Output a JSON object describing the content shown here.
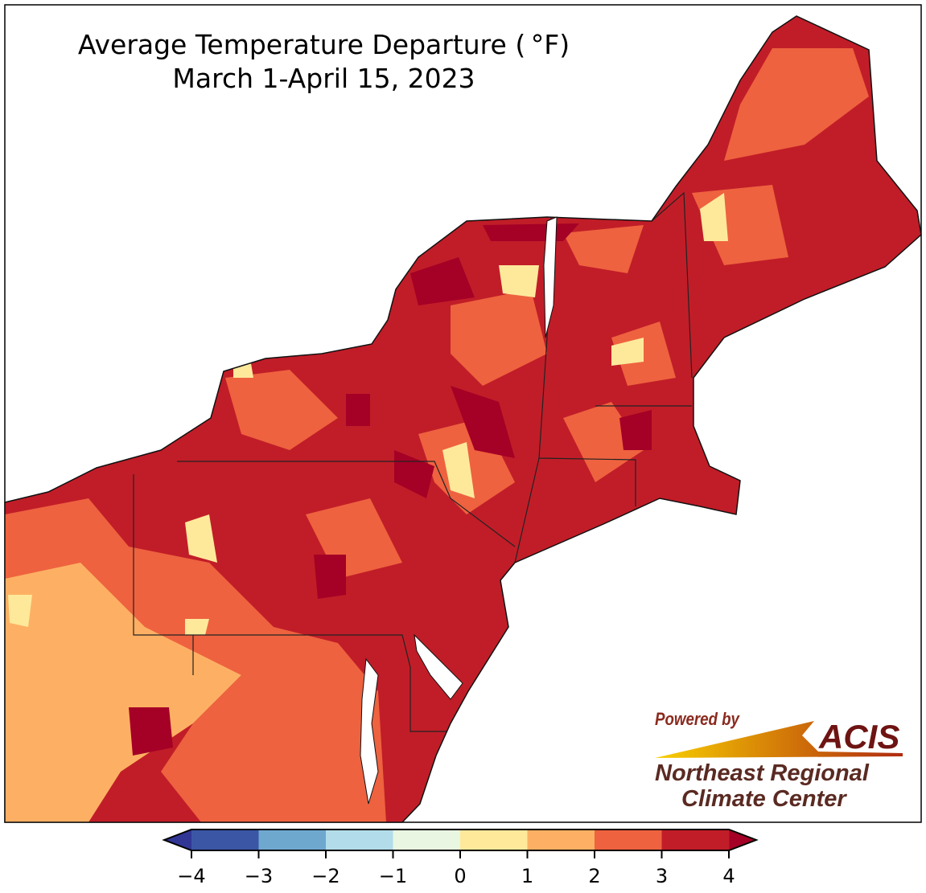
{
  "title": {
    "line1": "Average Temperature Departure ( °F)",
    "line2": "March 1-April 15, 2023"
  },
  "legend": {
    "ticks": [
      "−4",
      "−3",
      "−2",
      "−1",
      "0",
      "1",
      "2",
      "3",
      "4"
    ],
    "colors": [
      "#3b56a5",
      "#6fa8cf",
      "#b3dcea",
      "#e9f6e1",
      "#fee99b",
      "#fdb063",
      "#ee623f",
      "#c11d28"
    ],
    "under_color": "#313695",
    "over_color": "#a50026",
    "extend": "both"
  },
  "logo": {
    "powered_by": "Powered by",
    "brand": "ACIS",
    "org_line1": "Northeast Regional",
    "org_line2": "Climate Center"
  }
}
